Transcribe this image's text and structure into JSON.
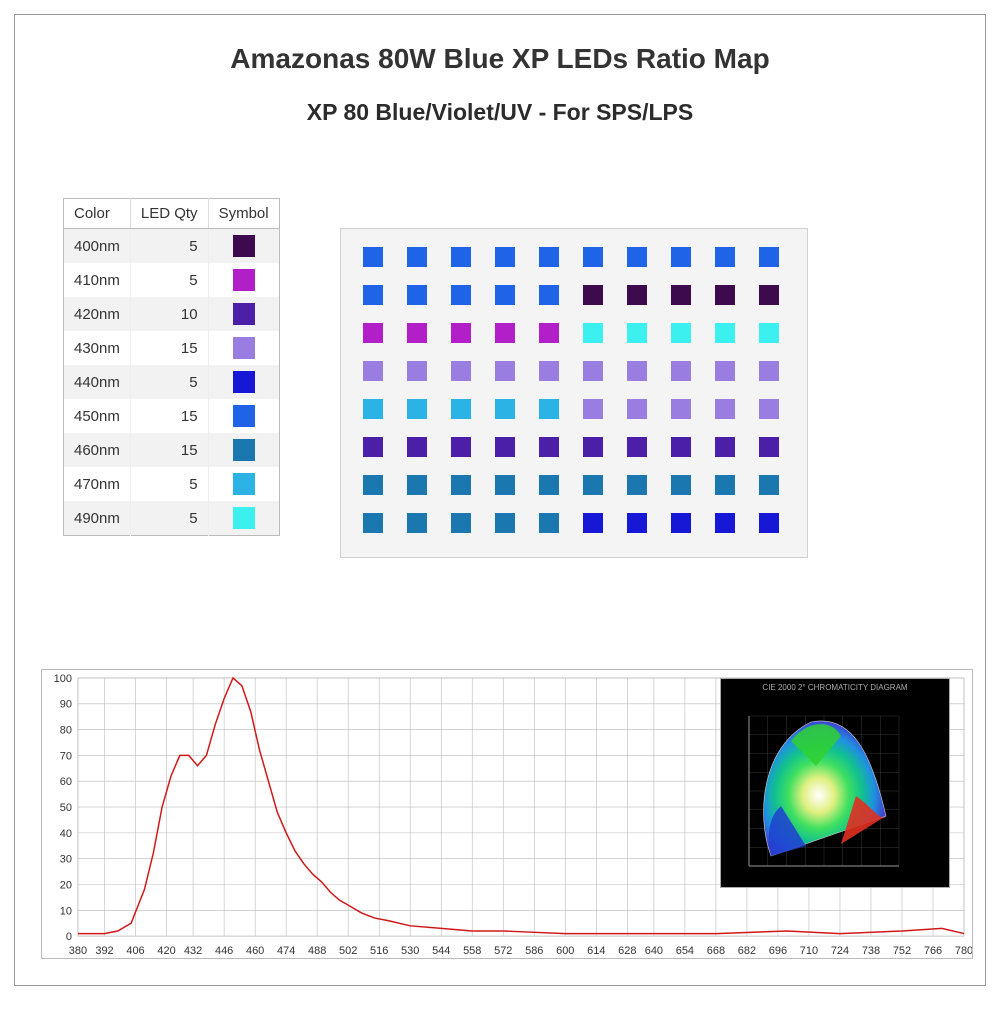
{
  "header": {
    "title": "Amazonas 80W Blue XP LEDs Ratio Map",
    "subtitle": "XP 80 Blue/Violet/UV  - For SPS/LPS"
  },
  "table": {
    "columns": [
      "Color",
      "LED Qty",
      "Symbol"
    ],
    "rows": [
      {
        "wavelength": "400nm",
        "qty": 5,
        "color": "#3d0a4e"
      },
      {
        "wavelength": "410nm",
        "qty": 5,
        "color": "#b21fc9"
      },
      {
        "wavelength": "420nm",
        "qty": 10,
        "color": "#4b1fa8"
      },
      {
        "wavelength": "430nm",
        "qty": 15,
        "color": "#9a7de0"
      },
      {
        "wavelength": "440nm",
        "qty": 5,
        "color": "#1717d6"
      },
      {
        "wavelength": "450nm",
        "qty": 15,
        "color": "#1f64e6"
      },
      {
        "wavelength": "460nm",
        "qty": 15,
        "color": "#1a77b0"
      },
      {
        "wavelength": "470nm",
        "qty": 5,
        "color": "#2bb3e6"
      },
      {
        "wavelength": "490nm",
        "qty": 5,
        "color": "#3df0f0"
      }
    ]
  },
  "grid": {
    "cols": 10,
    "rows": 8,
    "cell_colors": [
      [
        "#1f64e6",
        "#1f64e6",
        "#1f64e6",
        "#1f64e6",
        "#1f64e6",
        "#1f64e6",
        "#1f64e6",
        "#1f64e6",
        "#1f64e6",
        "#1f64e6"
      ],
      [
        "#1f64e6",
        "#1f64e6",
        "#1f64e6",
        "#1f64e6",
        "#1f64e6",
        "#3d0a4e",
        "#3d0a4e",
        "#3d0a4e",
        "#3d0a4e",
        "#3d0a4e"
      ],
      [
        "#b21fc9",
        "#b21fc9",
        "#b21fc9",
        "#b21fc9",
        "#b21fc9",
        "#3df0f0",
        "#3df0f0",
        "#3df0f0",
        "#3df0f0",
        "#3df0f0"
      ],
      [
        "#9a7de0",
        "#9a7de0",
        "#9a7de0",
        "#9a7de0",
        "#9a7de0",
        "#9a7de0",
        "#9a7de0",
        "#9a7de0",
        "#9a7de0",
        "#9a7de0"
      ],
      [
        "#2bb3e6",
        "#2bb3e6",
        "#2bb3e6",
        "#2bb3e6",
        "#2bb3e6",
        "#9a7de0",
        "#9a7de0",
        "#9a7de0",
        "#9a7de0",
        "#9a7de0"
      ],
      [
        "#4b1fa8",
        "#4b1fa8",
        "#4b1fa8",
        "#4b1fa8",
        "#4b1fa8",
        "#4b1fa8",
        "#4b1fa8",
        "#4b1fa8",
        "#4b1fa8",
        "#4b1fa8"
      ],
      [
        "#1a77b0",
        "#1a77b0",
        "#1a77b0",
        "#1a77b0",
        "#1a77b0",
        "#1a77b0",
        "#1a77b0",
        "#1a77b0",
        "#1a77b0",
        "#1a77b0"
      ],
      [
        "#1a77b0",
        "#1a77b0",
        "#1a77b0",
        "#1a77b0",
        "#1a77b0",
        "#1717d6",
        "#1717d6",
        "#1717d6",
        "#1717d6",
        "#1717d6"
      ]
    ]
  },
  "spectrum": {
    "type": "line",
    "line_color": "#d11818",
    "line_width": 1.5,
    "grid_color": "#bbbbbb",
    "background": "#ffffff",
    "ylim": [
      0,
      100
    ],
    "ytick_step": 10,
    "xlim": [
      380,
      780
    ],
    "xtick_step": 14,
    "xticks": [
      380,
      392,
      406,
      420,
      432,
      446,
      460,
      474,
      488,
      502,
      516,
      530,
      544,
      558,
      572,
      586,
      600,
      614,
      628,
      640,
      654,
      668,
      682,
      696,
      710,
      724,
      738,
      752,
      766,
      780
    ],
    "values": [
      [
        380,
        1
      ],
      [
        386,
        1
      ],
      [
        392,
        1
      ],
      [
        398,
        2
      ],
      [
        404,
        5
      ],
      [
        410,
        18
      ],
      [
        414,
        32
      ],
      [
        418,
        50
      ],
      [
        422,
        62
      ],
      [
        426,
        70
      ],
      [
        430,
        70
      ],
      [
        434,
        66
      ],
      [
        438,
        70
      ],
      [
        442,
        82
      ],
      [
        446,
        92
      ],
      [
        450,
        100
      ],
      [
        454,
        97
      ],
      [
        458,
        87
      ],
      [
        462,
        72
      ],
      [
        466,
        60
      ],
      [
        470,
        48
      ],
      [
        474,
        40
      ],
      [
        478,
        33
      ],
      [
        482,
        28
      ],
      [
        486,
        24
      ],
      [
        490,
        21
      ],
      [
        494,
        17
      ],
      [
        498,
        14
      ],
      [
        502,
        12
      ],
      [
        508,
        9
      ],
      [
        514,
        7
      ],
      [
        520,
        6
      ],
      [
        530,
        4
      ],
      [
        544,
        3
      ],
      [
        558,
        2
      ],
      [
        572,
        2
      ],
      [
        600,
        1
      ],
      [
        640,
        1
      ],
      [
        668,
        1
      ],
      [
        700,
        2
      ],
      [
        724,
        1
      ],
      [
        752,
        2
      ],
      [
        770,
        3
      ],
      [
        780,
        1
      ]
    ],
    "axis_fontsize": 11
  },
  "chroma": {
    "title": "CIE 2000 2° CHROMATICITY DIAGRAM",
    "bg": "#000000",
    "axis_color": "#888888"
  }
}
